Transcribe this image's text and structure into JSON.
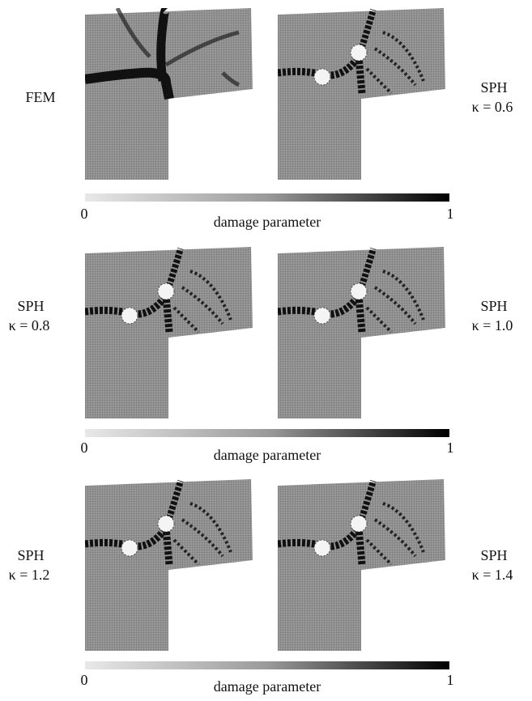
{
  "panels": [
    {
      "method": "FEM"
    },
    {
      "method": "SPH",
      "kappa": "κ = 0.6"
    },
    {
      "method": "SPH",
      "kappa": "κ = 0.8"
    },
    {
      "method": "SPH",
      "kappa": "κ = 1.0"
    },
    {
      "method": "SPH",
      "kappa": "κ = 1.2"
    },
    {
      "method": "SPH",
      "kappa": "κ = 1.4"
    }
  ],
  "colorbars": [
    {
      "min": "0",
      "max": "1",
      "label": "damage parameter"
    },
    {
      "min": "0",
      "max": "1",
      "label": "damage parameter"
    },
    {
      "min": "0",
      "max": "1",
      "label": "damage parameter"
    }
  ]
}
